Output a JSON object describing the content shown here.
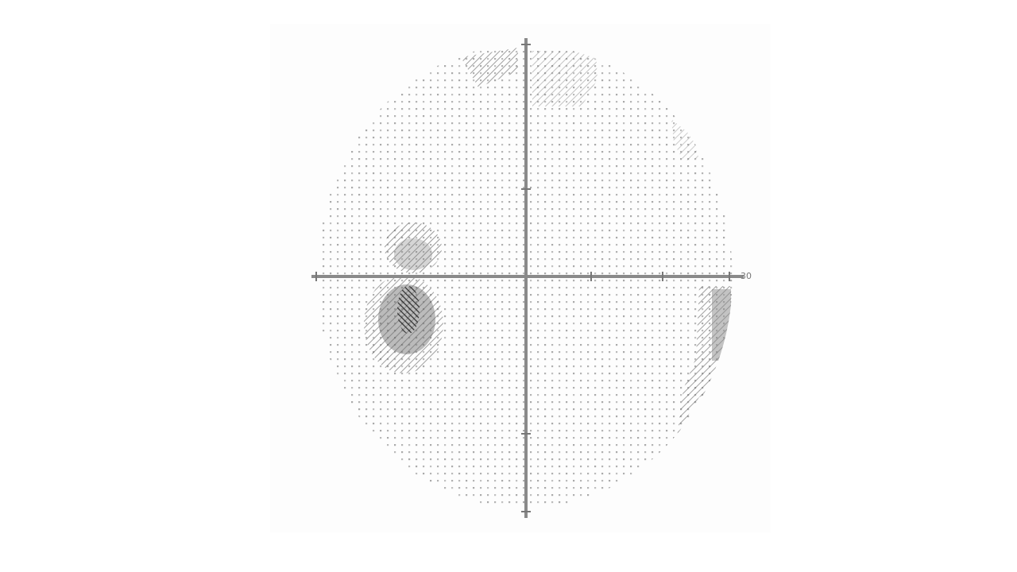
{
  "figure": {
    "type": "visual-field-grayscale-plot",
    "axis_label_right": "30"
  },
  "colors": {
    "background": "#ffffff",
    "panel": "#fdfdfd",
    "axis": "#888888",
    "tick": "#777777",
    "dot": "#8e8e8e",
    "shade_light": "#bdbdbd",
    "shade_mid": "#8a8a8a",
    "shade_dark": "#3c3c3c"
  },
  "legend": [],
  "defects": [
    {
      "name": "superior-nasal-upper-wedge",
      "severity": 0.55
    },
    {
      "name": "superior-right-wedge",
      "severity": 0.35
    },
    {
      "name": "upper-right-edge-patch",
      "severity": 0.3
    },
    {
      "name": "paracentral-left-upper",
      "severity": 0.55
    },
    {
      "name": "paracentral-left-lower-dense",
      "severity": 0.95
    },
    {
      "name": "right-lower-edge-band",
      "severity": 0.65
    }
  ]
}
